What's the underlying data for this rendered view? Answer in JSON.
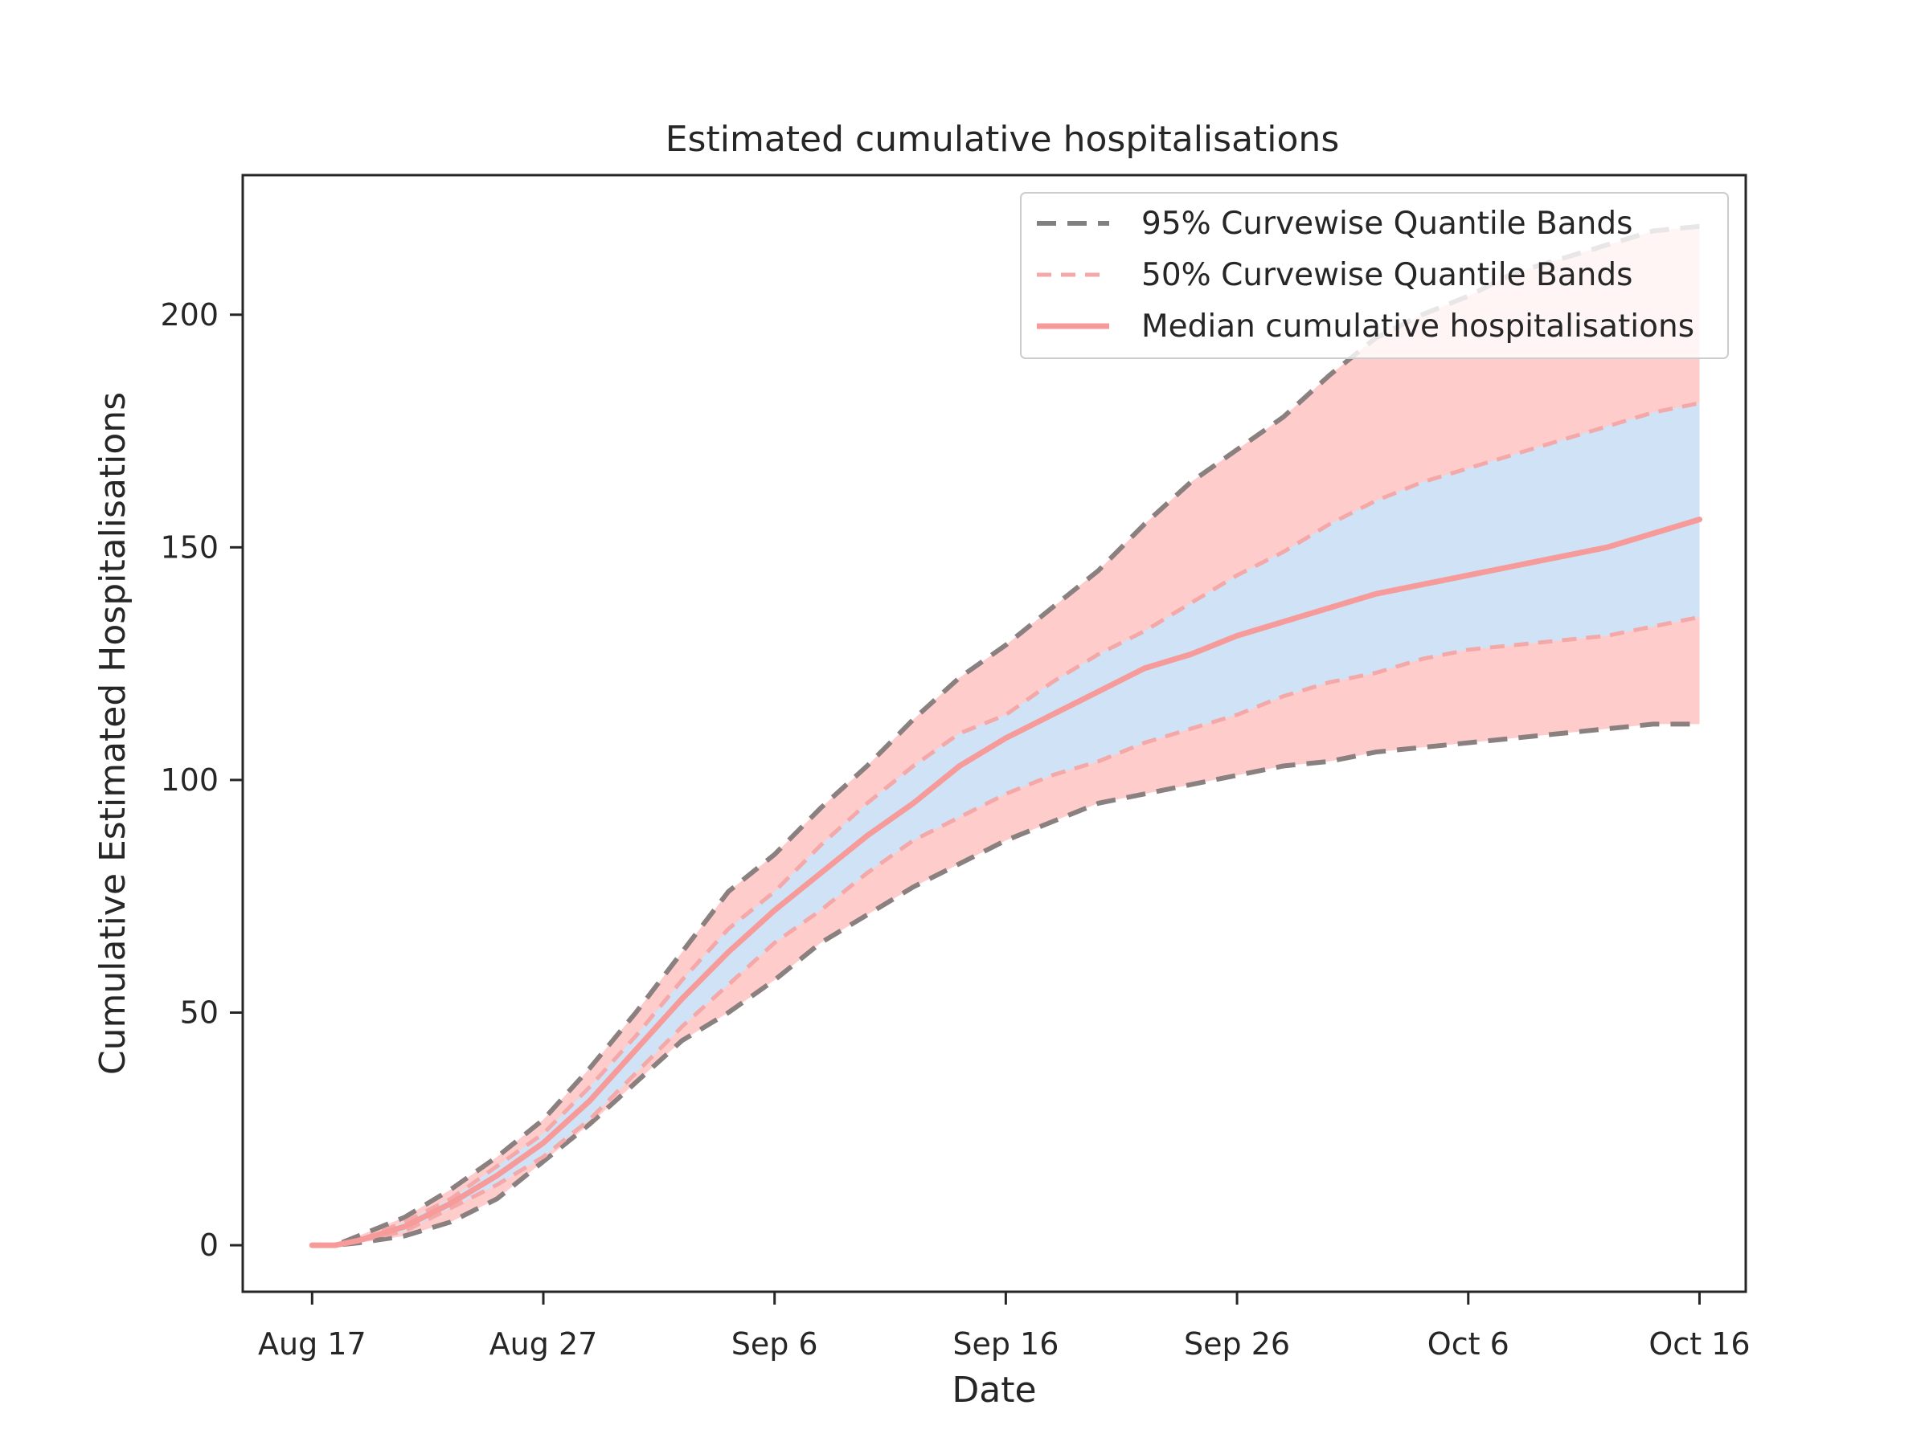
{
  "chart_data": {
    "type": "line",
    "title": "Estimated cumulative hospitalisations",
    "xlabel": "Date",
    "ylabel": "Cumulative Estimated Hospitalisations",
    "x_tick_labels": [
      "Aug 17",
      "Aug 27",
      "Sep 6",
      "Sep 16",
      "Sep 26",
      "Oct 6",
      "Oct 16"
    ],
    "x_tick_days": [
      0,
      10,
      20,
      30,
      40,
      50,
      60
    ],
    "y_tick_labels": [
      "0",
      "50",
      "100",
      "150",
      "200"
    ],
    "y_tick_values": [
      0,
      50,
      100,
      150,
      200
    ],
    "xlim": [
      -3,
      62
    ],
    "ylim": [
      -10,
      230
    ],
    "grid": false,
    "legend_position": "top-right",
    "legend": [
      {
        "label": "95% Curvewise Quantile Bands",
        "style": "dashed",
        "color": "#808080"
      },
      {
        "label": "50% Curvewise Quantile Bands",
        "style": "dashed",
        "color": "#f4a8a8"
      },
      {
        "label": "Median cumulative hospitalisations",
        "style": "solid",
        "color": "#f79a9a"
      }
    ],
    "colors": {
      "band95_fill": "#ffcccc",
      "band50_fill": "#cfe2f6",
      "band95_line": "#8a8080",
      "band50_line": "#f4a8a8",
      "median_line": "#f79a9a",
      "axis": "#262626"
    },
    "series": [
      {
        "name": "95% upper",
        "x": [
          0,
          1,
          2,
          4,
          6,
          8,
          10,
          12,
          14,
          16,
          18,
          20,
          22,
          24,
          26,
          28,
          30,
          32,
          34,
          36,
          38,
          40,
          42,
          44,
          46,
          48,
          50,
          52,
          54,
          56,
          58,
          60
        ],
        "values": [
          0,
          0,
          2,
          6,
          12,
          19,
          27,
          38,
          50,
          63,
          76,
          84,
          94,
          103,
          113,
          122,
          129,
          137,
          145,
          155,
          164,
          171,
          178,
          187,
          195,
          200,
          204,
          209,
          212,
          215,
          218,
          219
        ]
      },
      {
        "name": "50% upper",
        "x": [
          0,
          1,
          2,
          4,
          6,
          8,
          10,
          12,
          14,
          16,
          18,
          20,
          22,
          24,
          26,
          28,
          30,
          32,
          34,
          36,
          38,
          40,
          42,
          44,
          46,
          48,
          50,
          52,
          54,
          56,
          58,
          60
        ],
        "values": [
          0,
          0,
          1,
          5,
          10,
          17,
          24,
          34,
          45,
          57,
          68,
          76,
          86,
          95,
          103,
          110,
          114,
          121,
          127,
          132,
          138,
          144,
          149,
          155,
          160,
          164,
          167,
          170,
          173,
          176,
          179,
          181
        ]
      },
      {
        "name": "Median cumulative hospitalisations",
        "x": [
          0,
          1,
          2,
          4,
          6,
          8,
          10,
          12,
          14,
          16,
          18,
          20,
          22,
          24,
          26,
          28,
          30,
          32,
          34,
          36,
          38,
          40,
          42,
          44,
          46,
          48,
          50,
          52,
          54,
          56,
          58,
          60
        ],
        "values": [
          0,
          0,
          1,
          4,
          9,
          15,
          22,
          31,
          42,
          53,
          63,
          72,
          80,
          88,
          95,
          103,
          109,
          114,
          119,
          124,
          127,
          131,
          134,
          137,
          140,
          142,
          144,
          146,
          148,
          150,
          153,
          156
        ]
      },
      {
        "name": "50% lower",
        "x": [
          0,
          1,
          2,
          4,
          6,
          8,
          10,
          12,
          14,
          16,
          18,
          20,
          22,
          24,
          26,
          28,
          30,
          32,
          34,
          36,
          38,
          40,
          42,
          44,
          46,
          48,
          50,
          52,
          54,
          56,
          58,
          60
        ],
        "values": [
          0,
          0,
          1,
          3,
          8,
          13,
          19,
          27,
          37,
          47,
          56,
          65,
          72,
          80,
          87,
          92,
          97,
          101,
          104,
          108,
          111,
          114,
          118,
          121,
          123,
          126,
          128,
          129,
          130,
          131,
          133,
          135
        ]
      },
      {
        "name": "95% lower",
        "x": [
          0,
          1,
          2,
          4,
          6,
          8,
          10,
          12,
          14,
          16,
          18,
          20,
          22,
          24,
          26,
          28,
          30,
          32,
          34,
          36,
          38,
          40,
          42,
          44,
          46,
          48,
          50,
          52,
          54,
          56,
          58,
          60
        ],
        "values": [
          0,
          0,
          0.5,
          2,
          5,
          10,
          18,
          26,
          35,
          44,
          50,
          57,
          65,
          71,
          77,
          82,
          87,
          91,
          95,
          97,
          99,
          101,
          103,
          104,
          106,
          107,
          108,
          109,
          110,
          111,
          112,
          112
        ]
      }
    ]
  }
}
